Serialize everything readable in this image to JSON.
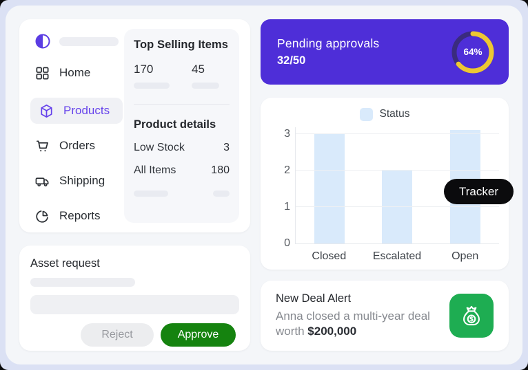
{
  "colors": {
    "page_background": "#DBE1F4",
    "container_background": "#F4F6F9",
    "accent_purple": "#6643EB",
    "pending_card_purple": "#4E2ED8",
    "donut_yellow": "#EDC733",
    "donut_track": "#3A2B7E",
    "bar_blue": "#D9EAFB",
    "tracker_black": "#0B0B0D",
    "deal_tile_green": "#1EAD52",
    "approve_green": "#15830F"
  },
  "sidebar": {
    "logo_icon": "half-circle-logo",
    "items": [
      {
        "label": "Home",
        "icon": "home-grid-icon",
        "active": false
      },
      {
        "label": "Products",
        "icon": "cube-icon",
        "active": true
      },
      {
        "label": "Orders",
        "icon": "cart-icon",
        "active": false
      },
      {
        "label": "Shipping",
        "icon": "truck-icon",
        "active": false
      },
      {
        "label": "Reports",
        "icon": "pie-chart-icon",
        "active": false
      }
    ]
  },
  "top_selling": {
    "title": "Top Selling Items",
    "stats": [
      {
        "value": "170"
      },
      {
        "value": "45"
      }
    ],
    "details_title": "Product details",
    "rows": [
      {
        "label": "Low Stock",
        "value": "3"
      },
      {
        "label": "All Items",
        "value": "180"
      }
    ]
  },
  "pending": {
    "title": "Pending approvals",
    "count": "32/50",
    "percent": 64,
    "percent_label": "64%"
  },
  "chart_data": {
    "type": "bar",
    "legend_label": "Status",
    "legend_position": "top",
    "categories": [
      "Closed",
      "Escalated",
      "Open"
    ],
    "series": [
      {
        "name": "Status",
        "values": [
          3,
          2,
          3.1
        ]
      }
    ],
    "values": [
      3,
      2,
      3.1
    ],
    "title": "",
    "xlabel": "",
    "ylabel": "",
    "ylim": [
      0,
      3.2
    ],
    "yticks": [
      0,
      1,
      2,
      3
    ],
    "grid": true,
    "bar_color": "#D9EAFB"
  },
  "tracker": {
    "label": "Tracker"
  },
  "deal": {
    "title": "New Deal Alert",
    "body_text": "Anna closed a multi-year deal worth ",
    "amount": "$200,000",
    "icon": "money-bag-icon"
  },
  "asset_request": {
    "title": "Asset request",
    "reject_label": "Reject",
    "approve_label": "Approve"
  }
}
